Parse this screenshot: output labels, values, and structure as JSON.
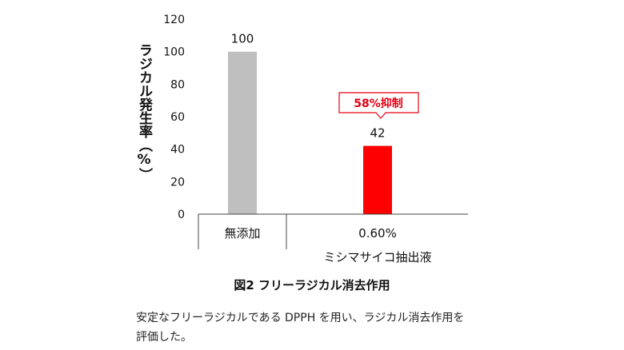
{
  "chart_data": {
    "type": "bar",
    "categories": [
      "無添加",
      "0.60%"
    ],
    "category_sublabels": [
      "",
      "ミシマサイコ抽出液"
    ],
    "values": [
      100,
      42
    ],
    "data_labels": [
      "100",
      "42"
    ],
    "bar_colors": [
      "#bfbfbf",
      "#ff0000"
    ],
    "ylabel": "ラジカル発生率（%）",
    "ylim": [
      0,
      120
    ],
    "yticks": [
      0,
      20,
      40,
      60,
      80,
      100,
      120
    ],
    "grid": false,
    "annotation": {
      "text": "58%抑制",
      "category_index": 1,
      "color": "#e60012"
    }
  },
  "caption": "図2 フリーラジカル消去作用",
  "description": "安定なフリーラジカルである DPPH を用い、ラジカル消去作用を評価した。"
}
